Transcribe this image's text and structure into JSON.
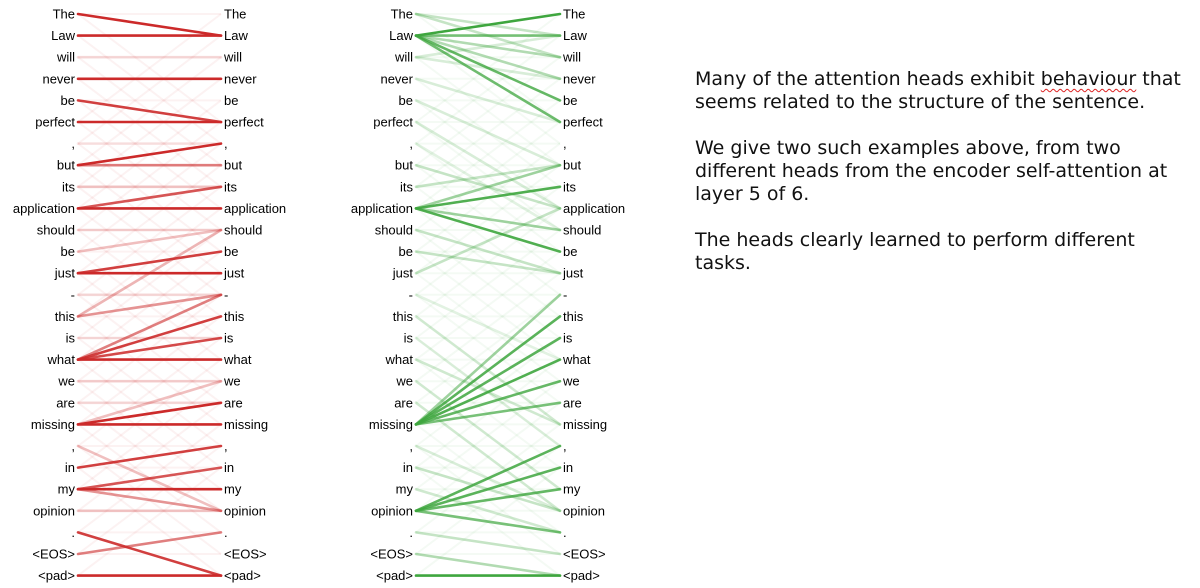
{
  "tokens": [
    "The",
    "Law",
    "will",
    "never",
    "be",
    "perfect",
    ",",
    "but",
    "its",
    "application",
    "should",
    "be",
    "just",
    "-",
    "this",
    "is",
    "what",
    "we",
    "are",
    "missing",
    ",",
    "in",
    "my",
    "opinion",
    ".",
    "<EOS>",
    "<pad>"
  ],
  "colors": {
    "red_head": "#cc2a2a",
    "green_head": "#3ea63e"
  },
  "red_head_links": [
    [
      0,
      1,
      1.0
    ],
    [
      1,
      1,
      1.0
    ],
    [
      3,
      3,
      1.0
    ],
    [
      4,
      5,
      0.9
    ],
    [
      5,
      5,
      1.0
    ],
    [
      7,
      6,
      1.0
    ],
    [
      7,
      7,
      0.6
    ],
    [
      8,
      8,
      0.25
    ],
    [
      9,
      9,
      1.0
    ],
    [
      9,
      8,
      0.8
    ],
    [
      10,
      10,
      0.2
    ],
    [
      11,
      10,
      0.3
    ],
    [
      12,
      12,
      1.0
    ],
    [
      12,
      11,
      0.9
    ],
    [
      14,
      10,
      0.35
    ],
    [
      14,
      13,
      0.5
    ],
    [
      16,
      14,
      0.9
    ],
    [
      16,
      15,
      0.85
    ],
    [
      16,
      16,
      1.0
    ],
    [
      16,
      13,
      0.6
    ],
    [
      17,
      17,
      0.2
    ],
    [
      19,
      18,
      1.0
    ],
    [
      19,
      19,
      1.0
    ],
    [
      19,
      17,
      0.3
    ],
    [
      21,
      20,
      0.9
    ],
    [
      22,
      22,
      1.0
    ],
    [
      22,
      21,
      0.8
    ],
    [
      22,
      23,
      0.5
    ],
    [
      20,
      23,
      0.3
    ],
    [
      23,
      23,
      0.25
    ],
    [
      24,
      26,
      0.9
    ],
    [
      25,
      24,
      0.6
    ],
    [
      26,
      26,
      1.0
    ],
    [
      2,
      2,
      0.15
    ],
    [
      6,
      6,
      0.1
    ],
    [
      18,
      18,
      0.15
    ],
    [
      13,
      13,
      0.15
    ],
    [
      15,
      15,
      0.15
    ]
  ],
  "green_head_links": [
    [
      1,
      0,
      1.0
    ],
    [
      1,
      1,
      0.7
    ],
    [
      1,
      4,
      0.8
    ],
    [
      1,
      5,
      0.75
    ],
    [
      1,
      2,
      0.4
    ],
    [
      1,
      3,
      0.4
    ],
    [
      9,
      8,
      0.9
    ],
    [
      9,
      11,
      0.9
    ],
    [
      9,
      7,
      0.5
    ],
    [
      9,
      10,
      0.5
    ],
    [
      19,
      14,
      0.85
    ],
    [
      19,
      15,
      0.85
    ],
    [
      19,
      16,
      0.9
    ],
    [
      19,
      17,
      0.8
    ],
    [
      19,
      18,
      0.7
    ],
    [
      19,
      13,
      0.5
    ],
    [
      23,
      20,
      0.85
    ],
    [
      23,
      21,
      0.85
    ],
    [
      23,
      22,
      0.8
    ],
    [
      23,
      24,
      0.7
    ],
    [
      26,
      26,
      1.0
    ],
    [
      25,
      26,
      0.4
    ],
    [
      0,
      2,
      0.3
    ],
    [
      2,
      3,
      0.2
    ],
    [
      3,
      5,
      0.2
    ],
    [
      4,
      7,
      0.2
    ],
    [
      5,
      9,
      0.2
    ],
    [
      7,
      9,
      0.3
    ],
    [
      8,
      7,
      0.3
    ],
    [
      10,
      12,
      0.3
    ],
    [
      11,
      12,
      0.3
    ],
    [
      12,
      9,
      0.3
    ],
    [
      14,
      19,
      0.2
    ],
    [
      16,
      19,
      0.25
    ],
    [
      17,
      22,
      0.2
    ],
    [
      18,
      23,
      0.2
    ],
    [
      21,
      23,
      0.3
    ],
    [
      22,
      24,
      0.25
    ],
    [
      24,
      25,
      0.3
    ],
    [
      6,
      10,
      0.15
    ],
    [
      13,
      16,
      0.15
    ],
    [
      15,
      20,
      0.15
    ],
    [
      20,
      23,
      0.2
    ],
    [
      2,
      1,
      0.2
    ],
    [
      0,
      1,
      0.3
    ]
  ],
  "caption": {
    "p1_before": "Many of the attention heads exhibit ",
    "p1_underlined": "behaviour",
    "p1_after": " that seems related to the structure of the sentence.",
    "p2": "We give two such examples above, from two different heads from the encoder self-attention at layer 5 of 6.",
    "p3": "The heads clearly learned to perform different tasks."
  }
}
